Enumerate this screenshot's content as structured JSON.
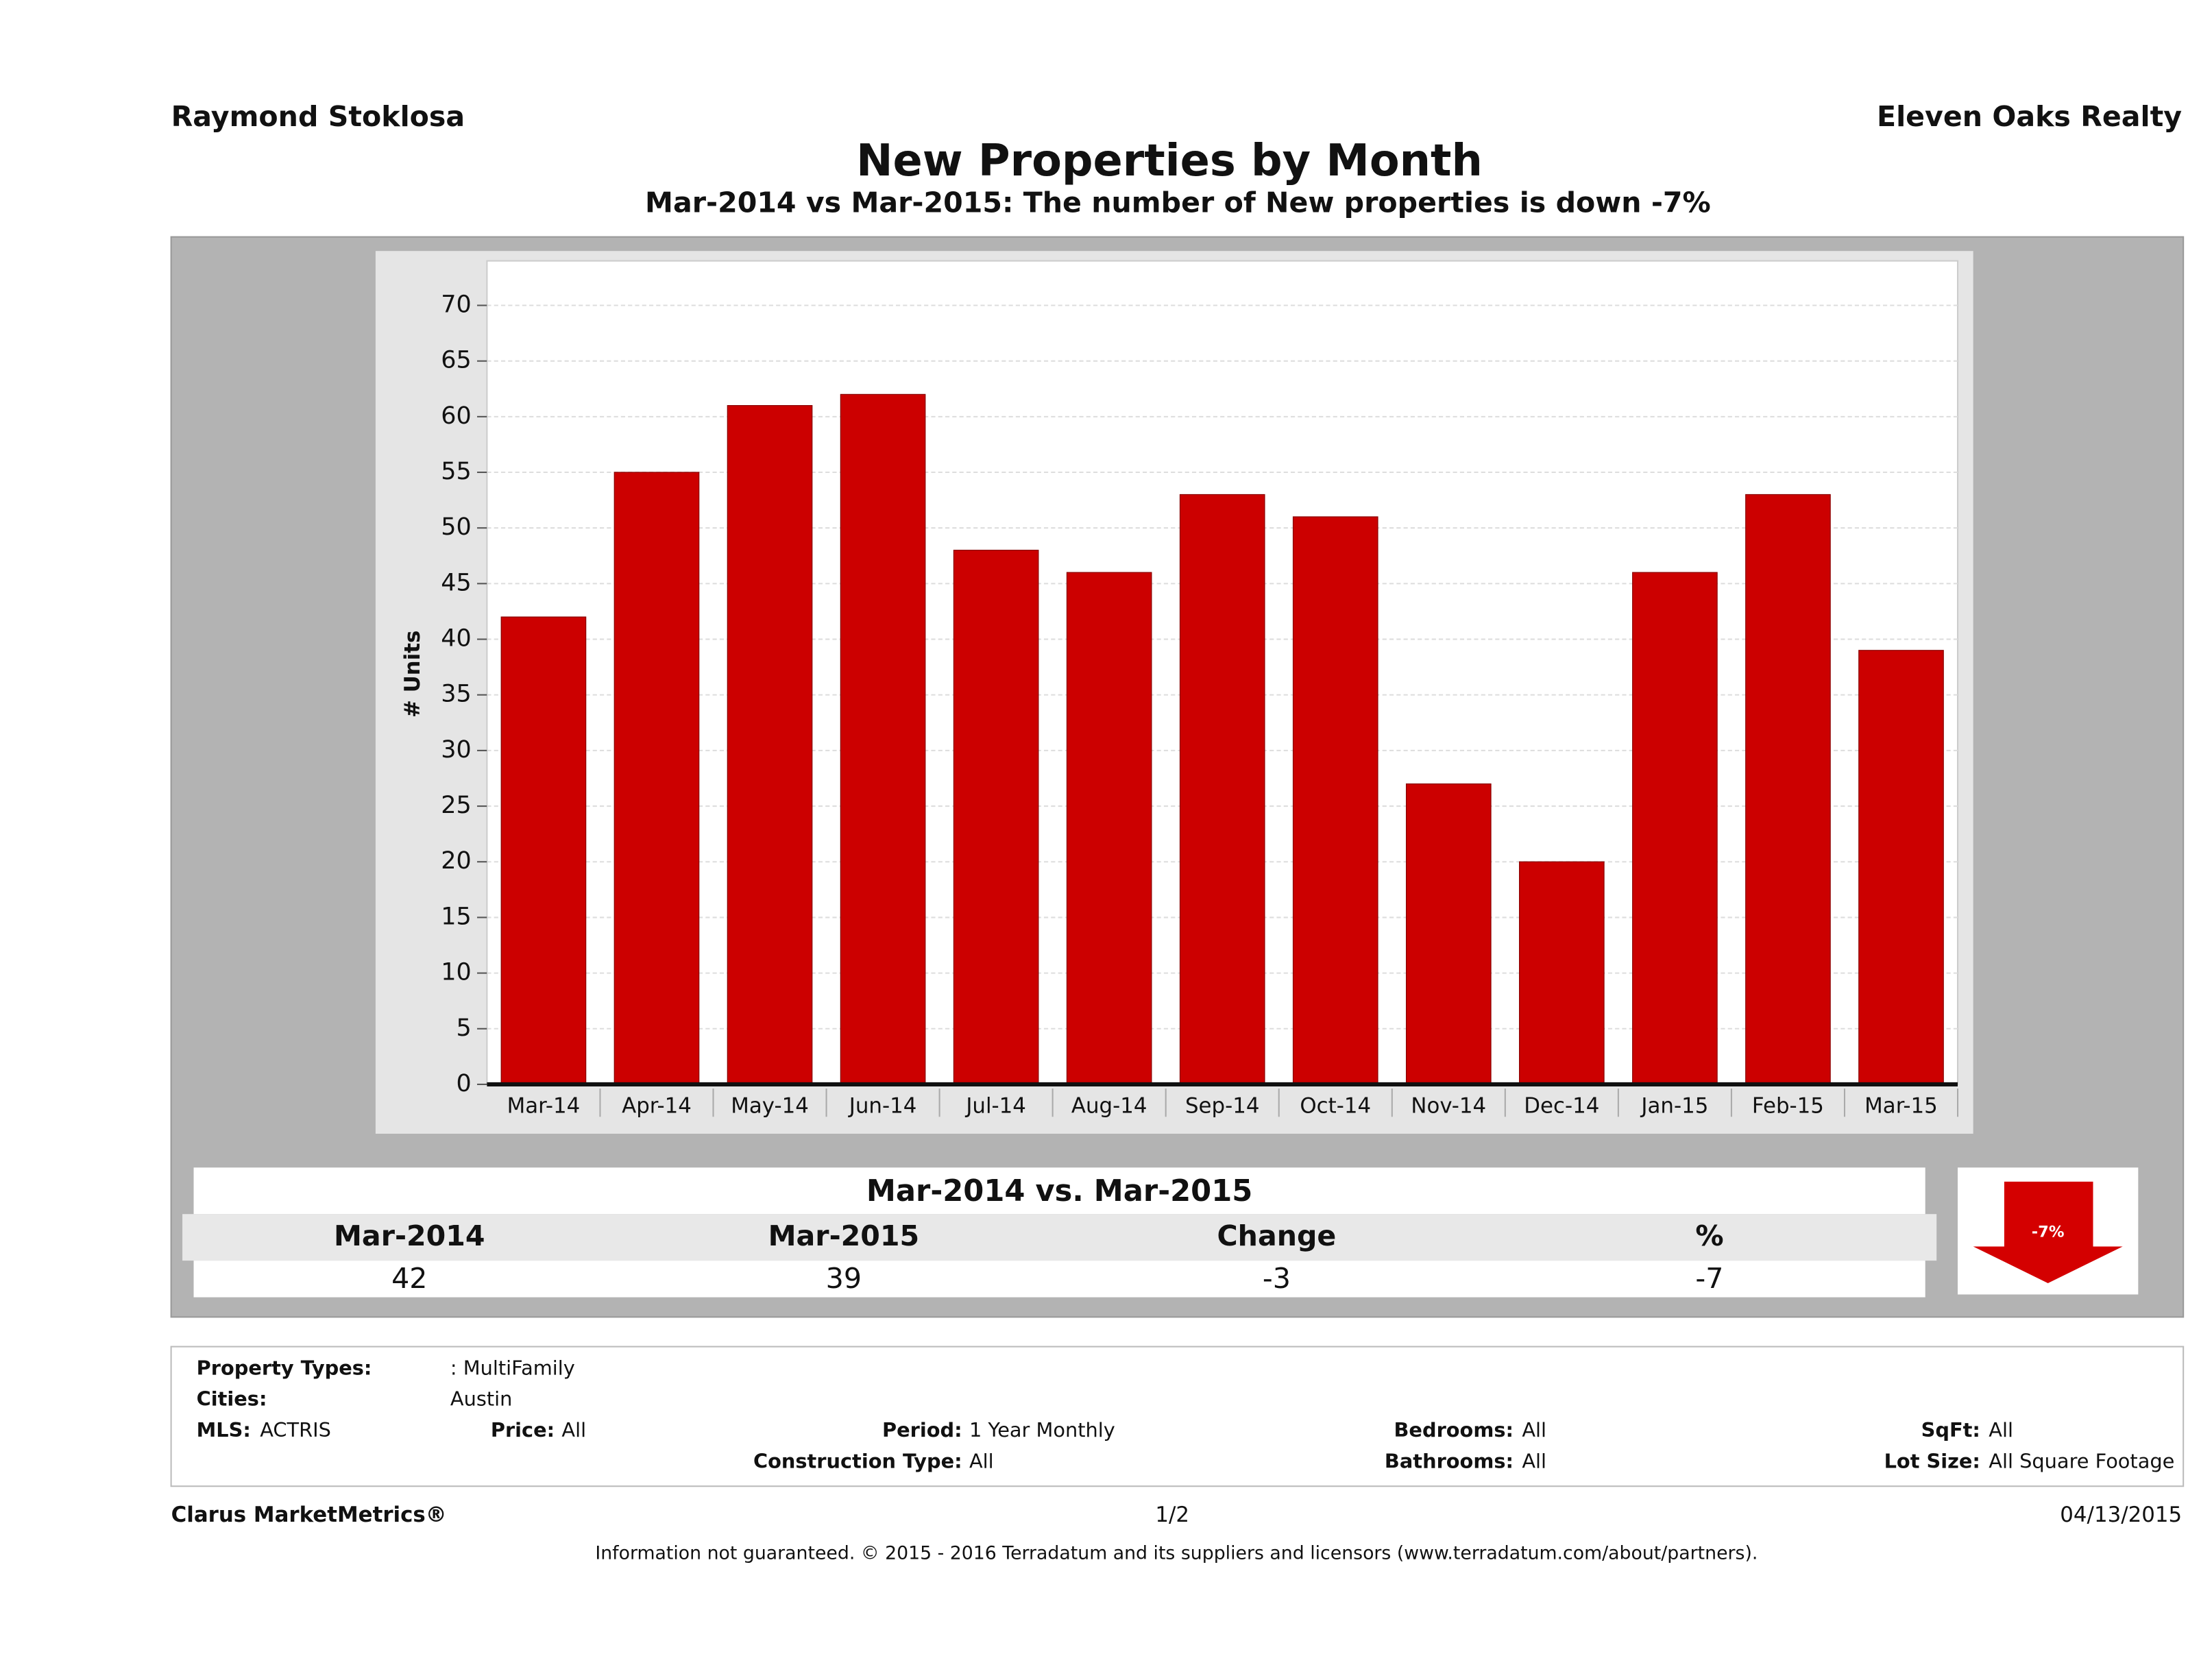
{
  "header": {
    "agent": "Raymond Stoklosa",
    "company": "Eleven Oaks Realty"
  },
  "chart_data": {
    "type": "bar",
    "title": "New Properties by Month",
    "subtitle": "Mar-2014 vs Mar-2015: The number of New  properties is down -7%",
    "y_label": "# Units",
    "categories": [
      "Mar-14",
      "Apr-14",
      "May-14",
      "Jun-14",
      "Jul-14",
      "Aug-14",
      "Sep-14",
      "Oct-14",
      "Nov-14",
      "Dec-14",
      "Jan-15",
      "Feb-15",
      "Mar-15"
    ],
    "values": [
      42,
      55,
      61,
      62,
      48,
      46,
      53,
      51,
      27,
      20,
      46,
      53,
      39
    ],
    "color": "#cc0000",
    "ylim": [
      0,
      74
    ],
    "yticks": [
      0,
      5,
      10,
      15,
      20,
      25,
      30,
      35,
      40,
      45,
      50,
      55,
      60,
      65,
      70
    ],
    "grid": true
  },
  "summary": {
    "title": "Mar-2014 vs. Mar-2015",
    "headers": [
      "Mar-2014",
      "Mar-2015",
      "Change",
      "%"
    ],
    "values": [
      "42",
      "39",
      "-3",
      "-7"
    ],
    "badge": "-7%"
  },
  "filters": [
    {
      "label": "Property Types:",
      "value": ": MultiFamily"
    },
    {
      "label": "Cities:",
      "value": "Austin"
    },
    {
      "label": "MLS:",
      "value": "ACTRIS"
    },
    {
      "label": "Price:",
      "value": "All"
    },
    {
      "label": "Period:",
      "value": "1 Year Monthly"
    },
    {
      "label": "Construction Type:",
      "value": "All"
    },
    {
      "label": "Bedrooms:",
      "value": "All"
    },
    {
      "label": "Bathrooms:",
      "value": "All"
    },
    {
      "label": "SqFt:",
      "value": "All"
    },
    {
      "label": "Lot Size:",
      "value": "All Square Footage"
    }
  ],
  "footer": {
    "brand": "Clarus MarketMetrics®",
    "page": "1/2",
    "date": "04/13/2015",
    "disclaimer": "Information not guaranteed. © 2015 - 2016 Terradatum and its suppliers and licensors (www.terradatum.com/about/partners)."
  }
}
